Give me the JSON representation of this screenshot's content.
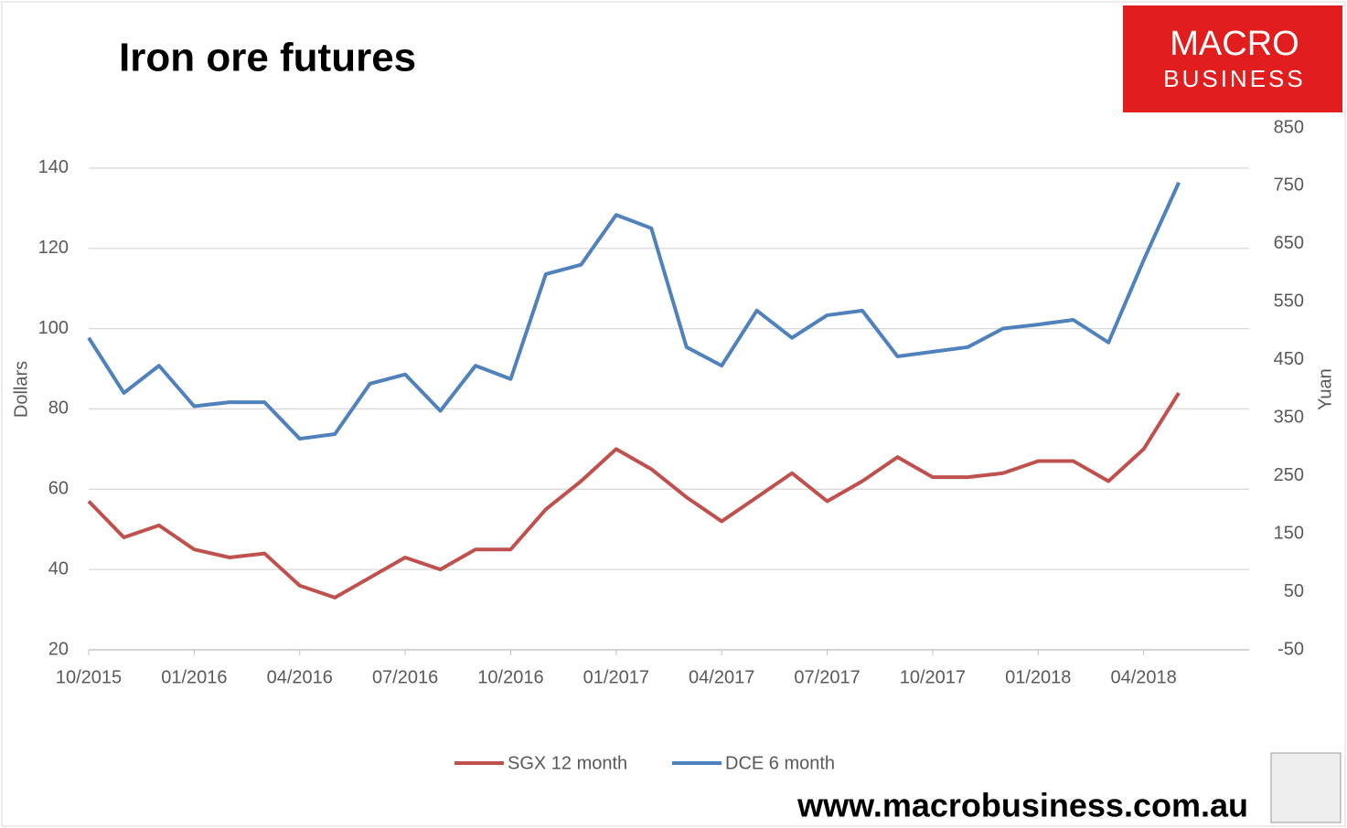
{
  "chart_data": {
    "type": "line",
    "title": "Iron ore futures",
    "brand": [
      "MACRO",
      "BUSINESS"
    ],
    "footer": "www.macrobusiness.com.au",
    "ylabel": "Dollars",
    "y2label": "Yuan",
    "x": [
      "10/2015",
      "11/2015",
      "12/2015",
      "01/2016",
      "02/2016",
      "03/2016",
      "04/2016",
      "05/2016",
      "06/2016",
      "07/2016",
      "08/2016",
      "09/2016",
      "10/2016",
      "11/2016",
      "12/2016",
      "01/2017",
      "02/2017",
      "03/2017",
      "04/2017",
      "05/2017",
      "06/2017",
      "07/2017",
      "08/2017",
      "09/2017",
      "10/2017",
      "11/2017",
      "12/2017",
      "01/2018",
      "02/2018",
      "03/2018",
      "04/2018",
      "05/2018"
    ],
    "xticks": [
      "10/2015",
      "01/2016",
      "04/2016",
      "07/2016",
      "10/2016",
      "01/2017",
      "04/2017",
      "07/2017",
      "10/2017",
      "01/2018",
      "04/2018"
    ],
    "series": [
      {
        "name": "SGX 12 month",
        "color": "#c0504d",
        "values": [
          57,
          48,
          51,
          45,
          43,
          44,
          36,
          33,
          38,
          43,
          40,
          45,
          45,
          55,
          62,
          70,
          65,
          58,
          52,
          58,
          64,
          57,
          62,
          68,
          63,
          63,
          64,
          67,
          67,
          62,
          70,
          84
        ]
      },
      {
        "name": "DCE 6 month",
        "color": "#4f81bd",
        "axis": "y2",
        "values": [
          488,
          393,
          440,
          370,
          377,
          377,
          314,
          322,
          409,
          425,
          362,
          440,
          417,
          598,
          614,
          700,
          677,
          472,
          440,
          535,
          488,
          527,
          535,
          456,
          464,
          472,
          504,
          511,
          519,
          480,
          622,
          756
        ]
      }
    ],
    "ylim": [
      20,
      150
    ],
    "yticks": [
      20,
      40,
      60,
      80,
      100,
      120,
      140
    ],
    "y2lim": [
      -50,
      850
    ],
    "y2ticks": [
      -50,
      50,
      150,
      250,
      350,
      450,
      550,
      650,
      750,
      850
    ],
    "grid": true,
    "legend": "bottom"
  }
}
